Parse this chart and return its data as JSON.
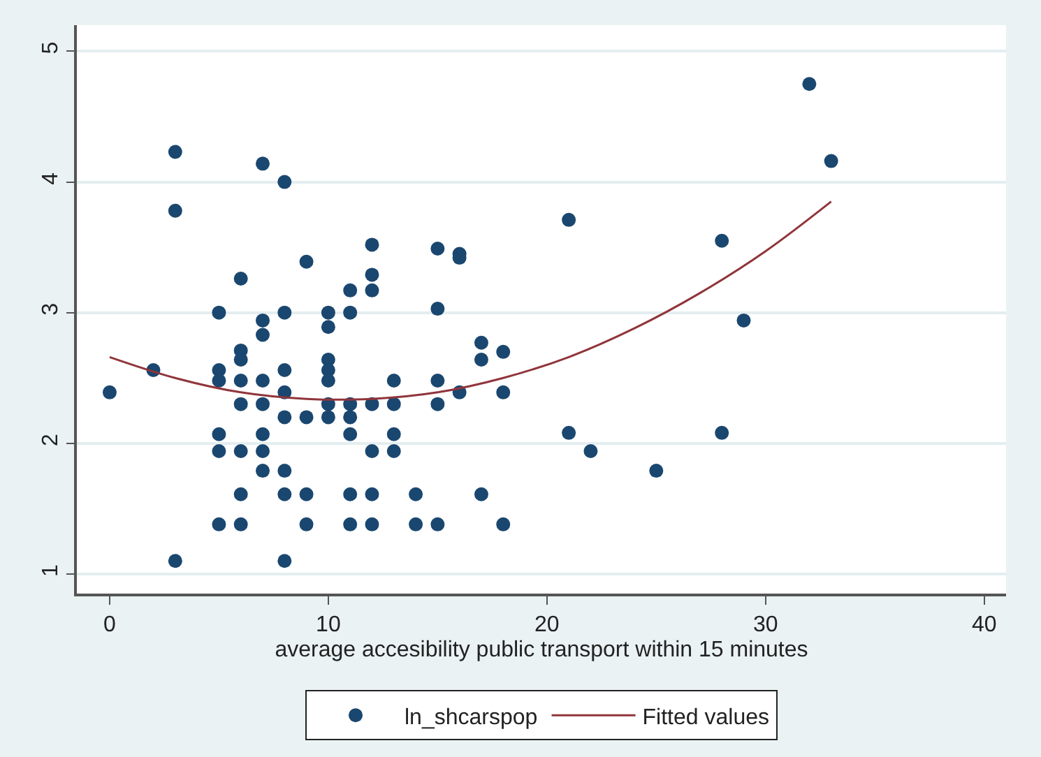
{
  "chart_data": {
    "type": "scatter",
    "xlabel": "average accesibility public transport within 15 minutes",
    "xlim": [
      -1.5,
      41
    ],
    "xticks": [
      0,
      10,
      20,
      30,
      40
    ],
    "ylim": [
      0.85,
      5.2
    ],
    "yticks": [
      1,
      2,
      3,
      4,
      5
    ],
    "grid": "y",
    "legend": "bottom",
    "marker": "circle",
    "series": [
      {
        "name": "ln_shcarspop",
        "color": "#1a476f",
        "x": [
          0,
          2,
          3,
          3,
          3,
          5,
          5,
          5,
          5,
          5,
          5,
          6,
          6,
          6,
          6,
          6,
          6,
          6,
          6,
          7,
          7,
          7,
          7,
          7,
          7,
          7,
          7,
          8,
          8,
          8,
          8,
          8,
          8,
          8,
          8,
          9,
          9,
          9,
          9,
          10,
          10,
          10,
          10,
          10,
          10,
          10,
          11,
          11,
          11,
          11,
          11,
          11,
          11,
          12,
          12,
          12,
          12,
          12,
          12,
          12,
          13,
          13,
          13,
          13,
          14,
          14,
          15,
          15,
          15,
          15,
          15,
          16,
          16,
          16,
          17,
          17,
          17,
          18,
          18,
          18,
          21,
          21,
          22,
          25,
          28,
          28,
          29,
          32,
          33
        ],
        "values": [
          2.39,
          2.56,
          4.23,
          3.78,
          1.1,
          3.0,
          2.56,
          2.48,
          2.07,
          1.94,
          1.38,
          3.26,
          2.71,
          2.64,
          2.48,
          2.3,
          1.94,
          1.61,
          1.38,
          4.14,
          2.94,
          2.83,
          2.48,
          2.3,
          2.07,
          1.94,
          1.79,
          4.0,
          3.0,
          2.56,
          2.39,
          2.2,
          1.79,
          1.61,
          1.1,
          3.39,
          2.2,
          1.61,
          1.38,
          3.0,
          2.89,
          2.64,
          2.56,
          2.48,
          2.3,
          2.2,
          3.17,
          3.0,
          2.3,
          2.2,
          2.07,
          1.61,
          1.38,
          3.52,
          3.29,
          3.17,
          2.3,
          1.94,
          1.61,
          1.38,
          2.48,
          2.3,
          2.07,
          1.94,
          1.61,
          1.38,
          3.49,
          3.03,
          2.48,
          2.3,
          1.38,
          3.45,
          3.42,
          2.39,
          2.77,
          2.64,
          1.61,
          2.7,
          2.39,
          1.38,
          3.71,
          2.08,
          1.94,
          1.79,
          3.55,
          2.08,
          2.94,
          4.75,
          4.16
        ]
      },
      {
        "name": "Fitted values",
        "type": "line",
        "color": "#90353b",
        "marker": "none",
        "line_style": "solid",
        "x": [
          0,
          3,
          6,
          9,
          12,
          15,
          18,
          21,
          24,
          27,
          30,
          33
        ],
        "values": [
          2.66,
          2.5,
          2.39,
          2.34,
          2.34,
          2.39,
          2.5,
          2.66,
          2.88,
          3.15,
          3.47,
          3.85
        ]
      }
    ]
  }
}
